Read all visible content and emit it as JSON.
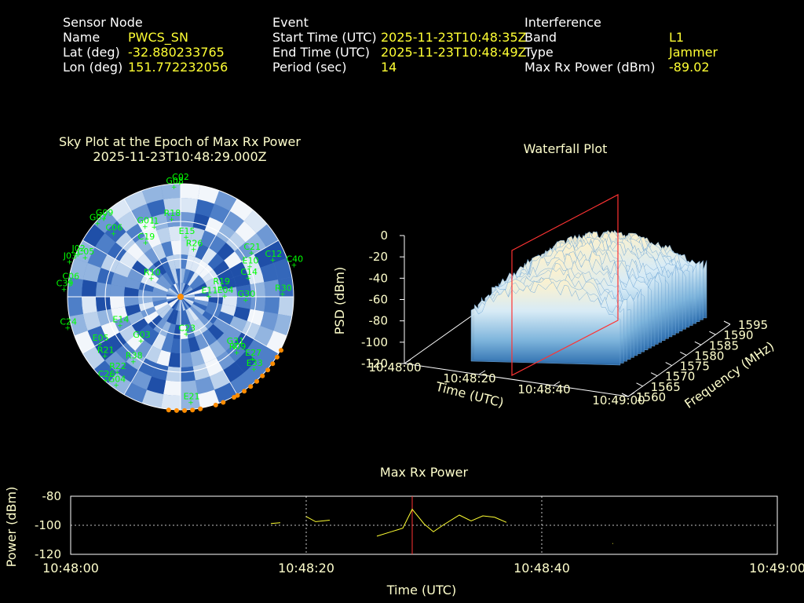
{
  "sensor": {
    "header": "Sensor Node",
    "rows": [
      {
        "label": "Name",
        "value": "PWCS_SN"
      },
      {
        "label": "Lat (deg)",
        "value": "-32.880233765"
      },
      {
        "label": "Lon (deg)",
        "value": "151.772232056"
      }
    ]
  },
  "event": {
    "header": "Event",
    "rows": [
      {
        "label": "Start Time (UTC)",
        "value": "2025-11-23T10:48:35Z"
      },
      {
        "label": "End Time (UTC)",
        "value": "2025-11-23T10:48:49Z"
      },
      {
        "label": "Period (sec)",
        "value": "14"
      }
    ]
  },
  "interference": {
    "header": "Interference",
    "rows": [
      {
        "label": "Band",
        "value": "L1"
      },
      {
        "label": "Type",
        "value": "Jammer"
      },
      {
        "label": "Max Rx Power (dBm)",
        "value": "-89.02"
      }
    ]
  },
  "colors": {
    "label": "#ffffff",
    "value": "#ffff33",
    "title": "#ffffcc",
    "satellite": "#00ff00",
    "max_power_line": "#ff3333",
    "power_trace": "#ffff33",
    "horizon_marker": "#ff8c00"
  },
  "chart_data": [
    {
      "type": "scatter",
      "kind": "polar-sky-plot",
      "title": "Sky Plot at the Epoch of Max Rx Power",
      "subtitle": "2025-11-23T10:48:29.000Z",
      "satellites": [
        {
          "id": "C02",
          "az": 0,
          "el": 3
        },
        {
          "id": "G08",
          "az": 357,
          "el": 6
        },
        {
          "id": "R18",
          "az": 354,
          "el": 30
        },
        {
          "id": "I1",
          "az": 340,
          "el": 33
        },
        {
          "id": "G09",
          "az": 316,
          "el": 7
        },
        {
          "id": "G07",
          "az": 312,
          "el": 6
        },
        {
          "id": "G01",
          "az": 334,
          "el": 30
        },
        {
          "id": "C06",
          "az": 314,
          "el": 20
        },
        {
          "id": "J02",
          "az": 293,
          "el": 6
        },
        {
          "id": "C19",
          "az": 328,
          "el": 41
        },
        {
          "id": "E15",
          "az": 6,
          "el": 44
        },
        {
          "id": "R26",
          "az": 16,
          "el": 52
        },
        {
          "id": "C05",
          "az": 293,
          "el": 12
        },
        {
          "id": "C21",
          "az": 58,
          "el": 26
        },
        {
          "id": "C12",
          "az": 68,
          "el": 14
        },
        {
          "id": "C40",
          "az": 74,
          "el": 0
        },
        {
          "id": "J03",
          "az": 288,
          "el": 2
        },
        {
          "id": "C06",
          "az": 278,
          "el": 6
        },
        {
          "id": "C39",
          "az": 274,
          "el": 2
        },
        {
          "id": "R10",
          "az": 304,
          "el": 64
        },
        {
          "id": "E10",
          "az": 66,
          "el": 32
        },
        {
          "id": "C14",
          "az": 74,
          "el": 36
        },
        {
          "id": "R19",
          "az": 76,
          "el": 58
        },
        {
          "id": "E11",
          "az": 88,
          "el": 68
        },
        {
          "id": "E04",
          "az": 88,
          "el": 56
        },
        {
          "id": "G30",
          "az": 92,
          "el": 40
        },
        {
          "id": "R30",
          "az": 88,
          "el": 12
        },
        {
          "id": "C24",
          "az": 255,
          "el": 2
        },
        {
          "id": "E05",
          "az": 240,
          "el": 20
        },
        {
          "id": "R21",
          "az": 232,
          "el": 18
        },
        {
          "id": "E14",
          "az": 245,
          "el": 40
        },
        {
          "id": "G03",
          "az": 222,
          "el": 46
        },
        {
          "id": "C23",
          "az": 170,
          "el": 62
        },
        {
          "id": "R38",
          "az": 216,
          "el": 30
        },
        {
          "id": "R22",
          "az": 220,
          "el": 16
        },
        {
          "id": "C26",
          "az": 222,
          "el": 6
        },
        {
          "id": "G04",
          "az": 216,
          "el": 8
        },
        {
          "id": "G31",
          "az": 132,
          "el": 34
        },
        {
          "id": "R09",
          "az": 134,
          "el": 30
        },
        {
          "id": "E27",
          "az": 130,
          "el": 18
        },
        {
          "id": "E33",
          "az": 134,
          "el": 12
        },
        {
          "id": "E21",
          "az": 174,
          "el": 10
        }
      ]
    },
    {
      "type": "area",
      "kind": "3d-waterfall",
      "title": "Waterfall Plot",
      "zlabel": "PSD (dBm)",
      "xlabel": "Time (UTC)",
      "ylabel": "Frequency (MHz)",
      "z_ticks": [
        "0",
        "-20",
        "-40",
        "-60",
        "-80",
        "-100",
        "-120"
      ],
      "time_ticks": [
        "10:48:00",
        "10:48:20",
        "10:48:40",
        "10:49:00"
      ],
      "freq_ticks": [
        "1560",
        "1565",
        "1570",
        "1575",
        "1580",
        "1585",
        "1590",
        "1595"
      ],
      "zlim": [
        -120,
        0
      ],
      "marker_epoch": "10:48:29"
    },
    {
      "type": "line",
      "title": "Max Rx Power",
      "xlabel": "Time (UTC)",
      "ylabel": "Power (dBm)",
      "x_ticks": [
        "10:48:00",
        "10:48:20",
        "10:48:40",
        "10:49:00"
      ],
      "y_ticks": [
        "-80",
        "-100",
        "-120"
      ],
      "ylim": [
        -120,
        -80
      ],
      "xlim_sec": [
        0,
        60
      ],
      "max_epoch_sec": 29,
      "series": [
        {
          "segments": [
            [
              [
                17.0,
                -98.8
              ],
              [
                17.8,
                -98.2
              ]
            ],
            [
              [
                20.0,
                -94.0
              ],
              [
                20.8,
                -97.5
              ],
              [
                22.0,
                -96.5
              ]
            ],
            [
              [
                26.0,
                -107.5
              ],
              [
                27.2,
                -104.5
              ],
              [
                28.2,
                -102.0
              ],
              [
                29.0,
                -89.0
              ],
              [
                30.0,
                -99.0
              ],
              [
                30.8,
                -104.5
              ],
              [
                31.6,
                -100.0
              ],
              [
                33.0,
                -93.0
              ],
              [
                34.0,
                -97.0
              ],
              [
                35.0,
                -93.5
              ],
              [
                36.0,
                -94.5
              ],
              [
                37.0,
                -98.0
              ]
            ],
            [
              [
                46.0,
                -112.5
              ],
              [
                46.05,
                -112.6
              ]
            ]
          ]
        }
      ]
    }
  ]
}
